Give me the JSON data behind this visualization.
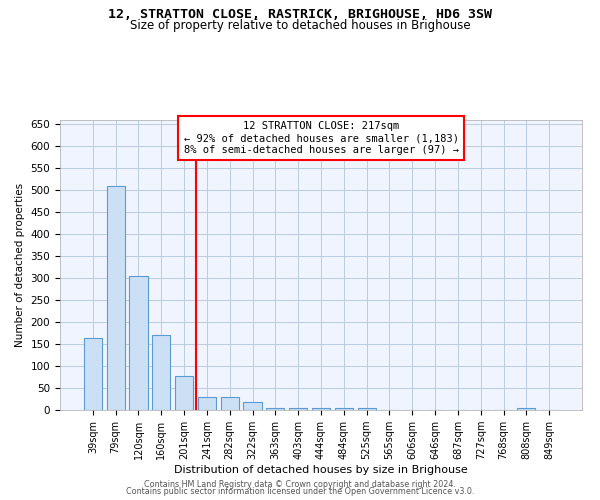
{
  "title": "12, STRATTON CLOSE, RASTRICK, BRIGHOUSE, HD6 3SW",
  "subtitle": "Size of property relative to detached houses in Brighouse",
  "xlabel": "Distribution of detached houses by size in Brighouse",
  "ylabel": "Number of detached properties",
  "bar_color": "#cce0f5",
  "bar_edge_color": "#5b9bd5",
  "categories": [
    "39sqm",
    "79sqm",
    "120sqm",
    "160sqm",
    "201sqm",
    "241sqm",
    "282sqm",
    "322sqm",
    "363sqm",
    "403sqm",
    "444sqm",
    "484sqm",
    "525sqm",
    "565sqm",
    "606sqm",
    "646sqm",
    "687sqm",
    "727sqm",
    "768sqm",
    "808sqm",
    "849sqm"
  ],
  "values": [
    165,
    510,
    305,
    170,
    78,
    30,
    30,
    18,
    5,
    5,
    5,
    5,
    5,
    0,
    0,
    0,
    0,
    0,
    0,
    5,
    0
  ],
  "red_line_x": 4.5,
  "annotation_line1": "12 STRATTON CLOSE: 217sqm",
  "annotation_line2": "← 92% of detached houses are smaller (1,183)",
  "annotation_line3": "8% of semi-detached houses are larger (97) →",
  "ylim": [
    0,
    660
  ],
  "yticks": [
    0,
    50,
    100,
    150,
    200,
    250,
    300,
    350,
    400,
    450,
    500,
    550,
    600,
    650
  ],
  "footer_line1": "Contains HM Land Registry data © Crown copyright and database right 2024.",
  "footer_line2": "Contains public sector information licensed under the Open Government Licence v3.0.",
  "bg_color": "#f0f4ff",
  "grid_color": "#b8cce4",
  "title_fontsize": 9.5,
  "subtitle_fontsize": 8.5
}
